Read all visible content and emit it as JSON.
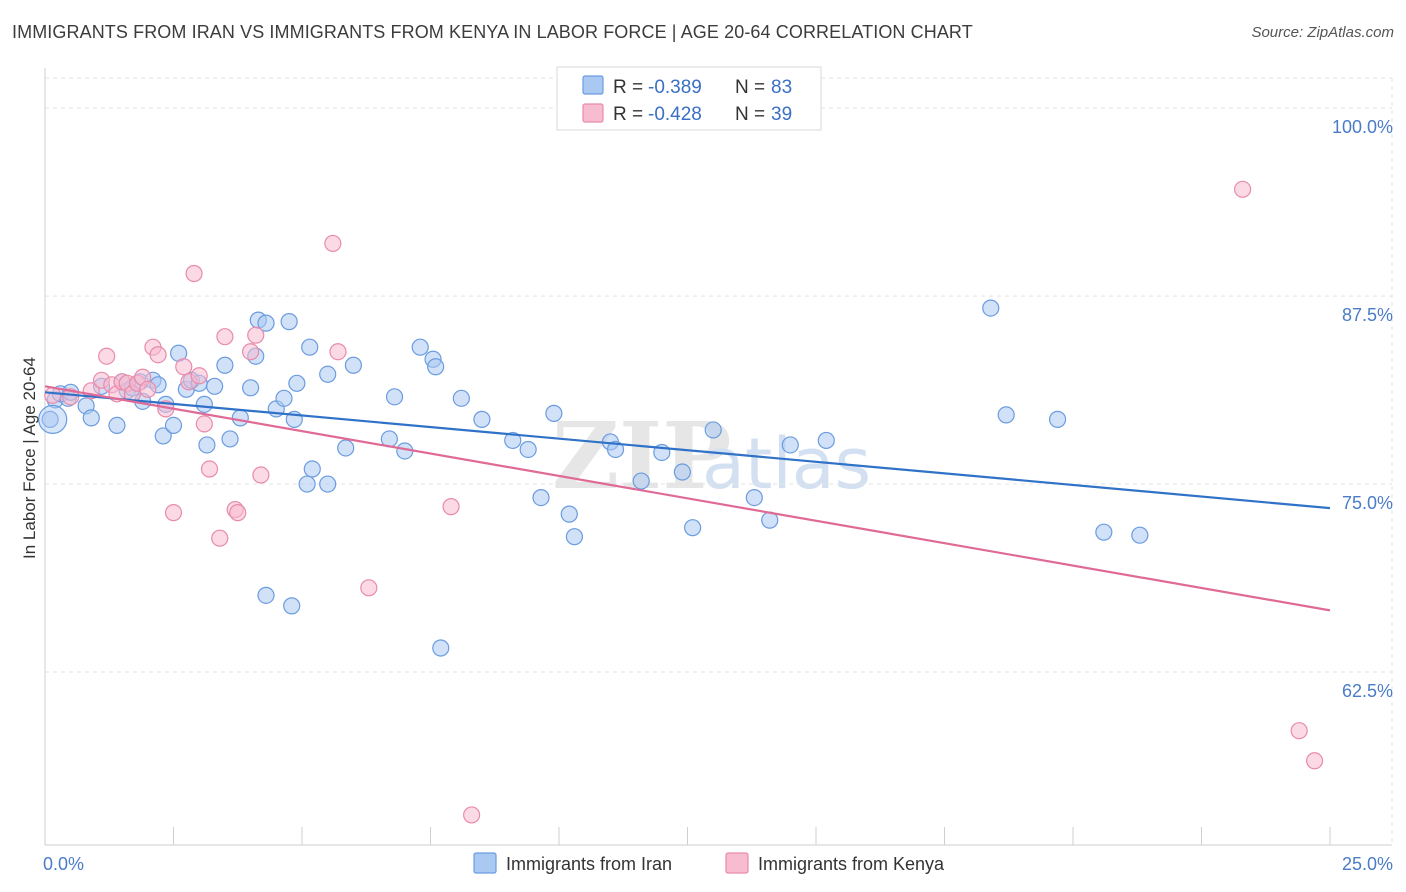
{
  "title": "IMMIGRANTS FROM IRAN VS IMMIGRANTS FROM KENYA IN LABOR FORCE | AGE 20-64 CORRELATION CHART",
  "source": "Source: ZipAtlas.com",
  "watermark": {
    "zip": "ZIP",
    "atlas": "atlas"
  },
  "legend_top": [
    {
      "r_label": "R = ",
      "r_value": "-0.389",
      "n_label": "N = ",
      "n_value": "83"
    },
    {
      "r_label": "R = ",
      "r_value": "-0.428",
      "n_label": "N = ",
      "n_value": "39"
    }
  ],
  "colors": {
    "iran_fill": "#a9c8f2",
    "iran_stroke": "#6b9ce0",
    "iran_line": "#2f72c8",
    "kenya_fill": "#f7bcd0",
    "kenya_stroke": "#e88bab",
    "kenya_line": "#e06a96",
    "grid": "#e3e3e3",
    "axis_text": "#4a7cc7"
  },
  "chart_data": {
    "type": "scatter",
    "title": "IMMIGRANTS FROM IRAN VS IMMIGRANTS FROM KENYA IN LABOR FORCE | AGE 20-64 CORRELATION CHART",
    "xlabel": "",
    "ylabel": "In Labor Force | Age 20-64",
    "xlim": [
      0,
      25
    ],
    "ylim": [
      51,
      102
    ],
    "x_tick_labels": [
      "0.0%",
      "25.0%"
    ],
    "y_ticks": [
      62.5,
      75.0,
      87.5,
      100.0
    ],
    "y_tick_labels": [
      "62.5%",
      "75.0%",
      "87.5%",
      "100.0%"
    ],
    "grid": true,
    "legend_position": "top-center",
    "series": [
      {
        "name": "Immigrants from Iran",
        "r": -0.389,
        "n": 83,
        "trend": [
          [
            0,
            81.1
          ],
          [
            25,
            73.4
          ]
        ],
        "points": [
          [
            0.1,
            79.3
          ],
          [
            0.2,
            80.6
          ],
          [
            0.3,
            81.0
          ],
          [
            0.45,
            80.7
          ],
          [
            0.5,
            81.1
          ],
          [
            0.8,
            80.2
          ],
          [
            0.9,
            79.4
          ],
          [
            1.1,
            81.5
          ],
          [
            1.4,
            78.9
          ],
          [
            1.5,
            81.8
          ],
          [
            1.6,
            81.2
          ],
          [
            1.7,
            81.4
          ],
          [
            1.85,
            81.8
          ],
          [
            1.9,
            80.5
          ],
          [
            2.1,
            81.9
          ],
          [
            2.2,
            81.6
          ],
          [
            2.3,
            78.2
          ],
          [
            2.35,
            80.3
          ],
          [
            2.5,
            78.9
          ],
          [
            2.6,
            83.7
          ],
          [
            2.75,
            81.3
          ],
          [
            2.85,
            81.9
          ],
          [
            3.0,
            81.7
          ],
          [
            3.1,
            80.3
          ],
          [
            3.15,
            77.6
          ],
          [
            3.3,
            81.5
          ],
          [
            3.5,
            82.9
          ],
          [
            3.6,
            78.0
          ],
          [
            3.8,
            79.4
          ],
          [
            4.0,
            81.4
          ],
          [
            4.1,
            83.5
          ],
          [
            4.15,
            85.9
          ],
          [
            4.3,
            85.7
          ],
          [
            4.5,
            80.0
          ],
          [
            4.65,
            80.7
          ],
          [
            4.75,
            85.8
          ],
          [
            4.85,
            79.3
          ],
          [
            4.9,
            81.7
          ],
          [
            5.1,
            75.0
          ],
          [
            5.15,
            84.1
          ],
          [
            5.2,
            76.0
          ],
          [
            5.5,
            75.0
          ],
          [
            5.5,
            82.3
          ],
          [
            5.85,
            77.4
          ],
          [
            6.0,
            82.9
          ],
          [
            6.7,
            78.0
          ],
          [
            6.8,
            80.8
          ],
          [
            7.0,
            77.2
          ],
          [
            7.3,
            84.1
          ],
          [
            7.55,
            83.3
          ],
          [
            7.6,
            82.8
          ],
          [
            8.1,
            80.7
          ],
          [
            8.5,
            79.3
          ],
          [
            9.1,
            77.9
          ],
          [
            9.4,
            77.3
          ],
          [
            9.65,
            74.1
          ],
          [
            9.9,
            79.7
          ],
          [
            10.2,
            73.0
          ],
          [
            10.3,
            71.5
          ],
          [
            11.0,
            77.8
          ],
          [
            11.1,
            77.3
          ],
          [
            11.6,
            75.2
          ],
          [
            12.0,
            77.1
          ],
          [
            12.4,
            75.8
          ],
          [
            12.6,
            72.1
          ],
          [
            13.0,
            78.6
          ],
          [
            13.8,
            74.1
          ],
          [
            14.1,
            72.6
          ],
          [
            14.5,
            77.6
          ],
          [
            15.2,
            77.9
          ],
          [
            18.4,
            86.7
          ],
          [
            18.7,
            79.6
          ],
          [
            19.7,
            79.3
          ],
          [
            20.6,
            71.8
          ],
          [
            21.3,
            71.6
          ],
          [
            4.3,
            67.6
          ],
          [
            4.8,
            66.9
          ],
          [
            7.7,
            64.1
          ]
        ]
      },
      {
        "name": "Immigrants from Kenya",
        "r": -0.428,
        "n": 39,
        "trend": [
          [
            0,
            81.5
          ],
          [
            25,
            66.6
          ]
        ],
        "points": [
          [
            0.15,
            80.9
          ],
          [
            0.5,
            80.8
          ],
          [
            0.9,
            81.2
          ],
          [
            1.1,
            81.9
          ],
          [
            1.2,
            83.5
          ],
          [
            1.3,
            81.6
          ],
          [
            1.4,
            81.0
          ],
          [
            1.5,
            81.8
          ],
          [
            1.6,
            81.7
          ],
          [
            1.7,
            81.0
          ],
          [
            1.8,
            81.7
          ],
          [
            1.9,
            82.1
          ],
          [
            2.0,
            81.3
          ],
          [
            2.1,
            84.1
          ],
          [
            2.2,
            83.6
          ],
          [
            2.35,
            80.0
          ],
          [
            2.5,
            73.1
          ],
          [
            2.7,
            82.8
          ],
          [
            2.8,
            81.8
          ],
          [
            2.9,
            89.0
          ],
          [
            3.0,
            82.2
          ],
          [
            3.1,
            79.0
          ],
          [
            3.2,
            76.0
          ],
          [
            3.4,
            71.4
          ],
          [
            3.5,
            84.8
          ],
          [
            3.7,
            73.3
          ],
          [
            3.75,
            73.1
          ],
          [
            4.0,
            83.8
          ],
          [
            4.1,
            84.9
          ],
          [
            4.2,
            75.6
          ],
          [
            5.6,
            91.0
          ],
          [
            5.7,
            83.8
          ],
          [
            6.3,
            68.1
          ],
          [
            7.9,
            73.5
          ],
          [
            8.3,
            53.0
          ],
          [
            23.3,
            94.6
          ],
          [
            24.4,
            58.6
          ],
          [
            24.7,
            56.6
          ]
        ]
      }
    ]
  },
  "bottom_legend": [
    {
      "label": "Immigrants from Iran"
    },
    {
      "label": "Immigrants from Kenya"
    }
  ]
}
